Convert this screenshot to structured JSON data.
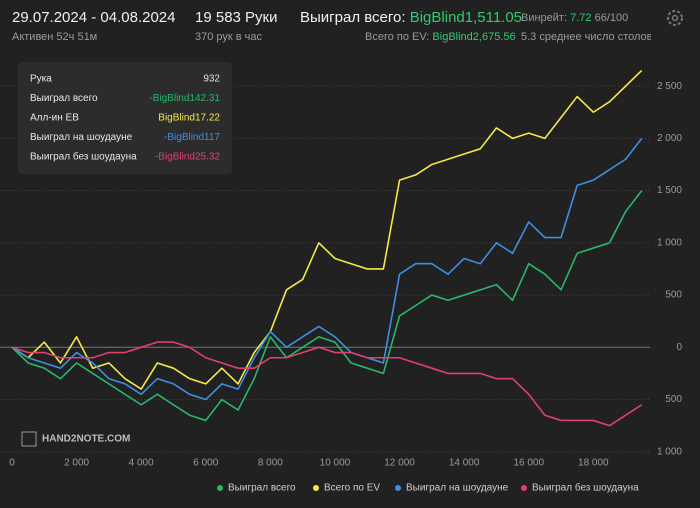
{
  "header": {
    "dates": "29.07.2024 - 04.08.2024",
    "active": "Активен 52ч 51м",
    "hands": "19 583 Руки",
    "rate": "370 рук в час",
    "won_label": "Выиграл всего:",
    "won_value": "BigBlind1,511.05",
    "ev_label": "Всего по EV:",
    "ev_value": "BigBlind2,675.56",
    "winrate_label": "Винрейт:",
    "winrate_value": "7.72",
    "winrate_per": "66/100",
    "tables": "5.3 среднее число столов"
  },
  "tooltip": {
    "rows": [
      [
        "Рука",
        "932"
      ],
      [
        "Выиграл всего",
        "-BigBlind142.31"
      ],
      [
        "Алл-ин ЕВ",
        "BigBlind17.22"
      ],
      [
        "Выиграл на шоудауне",
        "-BigBlind117"
      ],
      [
        "Выиграл без шоудауна",
        "-BigBlind25.32"
      ]
    ]
  },
  "watermark": "HAND2NOTE.COM",
  "chart_data": {
    "type": "line",
    "x": [
      0,
      500,
      1000,
      1500,
      2000,
      2500,
      3000,
      3500,
      4000,
      4500,
      5000,
      5500,
      6000,
      6500,
      7000,
      7500,
      8000,
      8500,
      9000,
      9500,
      10000,
      10500,
      11000,
      11500,
      12000,
      12500,
      13000,
      13500,
      14000,
      14500,
      15000,
      15500,
      16000,
      16500,
      17000,
      17500,
      18000,
      18500,
      19000,
      19500
    ],
    "series": [
      {
        "name": "Выиграл всего",
        "color": "#27b86a",
        "values": [
          0,
          -150,
          -200,
          -300,
          -150,
          -250,
          -350,
          -450,
          -550,
          -450,
          -550,
          -650,
          -700,
          -500,
          -600,
          -300,
          100,
          -100,
          0,
          100,
          50,
          -150,
          -200,
          -250,
          300,
          400,
          500,
          450,
          500,
          550,
          600,
          450,
          800,
          700,
          550,
          900,
          950,
          1000,
          1300,
          1500
        ]
      },
      {
        "name": "Всего по EV",
        "color": "#f4e94a",
        "values": [
          0,
          -100,
          50,
          -150,
          100,
          -200,
          -150,
          -300,
          -400,
          -150,
          -200,
          -300,
          -350,
          -200,
          -350,
          -50,
          150,
          550,
          650,
          1000,
          850,
          800,
          750,
          750,
          1600,
          1650,
          1750,
          1800,
          1850,
          1900,
          2100,
          2000,
          2050,
          2000,
          2200,
          2400,
          2250,
          2350,
          2500,
          2650
        ]
      },
      {
        "name": "Выиграл на шоудауне",
        "color": "#3d8fe0",
        "values": [
          0,
          -100,
          -150,
          -200,
          -50,
          -150,
          -300,
          -350,
          -450,
          -300,
          -350,
          -450,
          -500,
          -350,
          -400,
          -100,
          150,
          0,
          100,
          200,
          100,
          -50,
          -100,
          -150,
          700,
          800,
          800,
          700,
          850,
          800,
          1000,
          900,
          1200,
          1050,
          1050,
          1550,
          1600,
          1700,
          1800,
          2000
        ]
      },
      {
        "name": "Выиграл без шоудауна",
        "color": "#e0406e",
        "values": [
          0,
          -50,
          -50,
          -100,
          -100,
          -100,
          -50,
          -50,
          0,
          50,
          50,
          0,
          -100,
          -150,
          -200,
          -200,
          -100,
          -100,
          -50,
          0,
          -50,
          -50,
          -100,
          -100,
          -100,
          -150,
          -200,
          -250,
          -250,
          -250,
          -300,
          -300,
          -450,
          -650,
          -700,
          -700,
          -700,
          -750,
          -650,
          -550
        ]
      }
    ],
    "xlim": [
      0,
      19600
    ],
    "ylim": [
      -1050,
      2750
    ],
    "xticks": [
      0,
      {
        "value": 2000,
        "label": "2 000"
      },
      {
        "value": 4000,
        "label": "4 000"
      },
      {
        "value": 6000,
        "label": "6 000"
      },
      {
        "value": 8000,
        "label": "8 000"
      },
      {
        "value": 10000,
        "label": "10 000"
      },
      {
        "value": 12000,
        "label": "12 000"
      },
      {
        "value": 14000,
        "label": "14 000"
      },
      {
        "value": 16000,
        "label": "16 000"
      },
      {
        "value": 18000,
        "label": "18 000"
      }
    ],
    "yticks": [
      {
        "value": -1000,
        "label": "1 000"
      },
      {
        "value": -500,
        "label": "500"
      },
      0,
      500,
      {
        "value": 1000,
        "label": "1 000"
      },
      {
        "value": 1500,
        "label": "1 500"
      },
      {
        "value": 2000,
        "label": "2 000"
      },
      {
        "value": 2500,
        "label": "2 500"
      }
    ],
    "grid": true
  }
}
